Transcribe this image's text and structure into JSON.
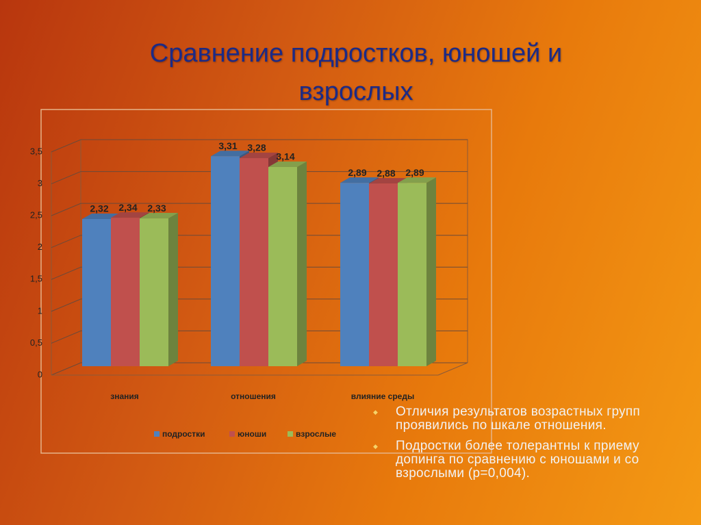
{
  "title": "Сравнение подростков, юношей и взрослых",
  "chart_data": {
    "type": "bar",
    "categories": [
      "знания",
      "отношения",
      "влияние среды"
    ],
    "series": [
      {
        "name": "подростки",
        "color": "#4f81bd",
        "values": [
          2.32,
          3.31,
          2.89
        ],
        "value_labels": [
          "2,32",
          "3,31",
          "2,89"
        ]
      },
      {
        "name": "юноши",
        "color": "#c0504d",
        "values": [
          2.34,
          3.28,
          2.88
        ],
        "value_labels": [
          "2,34",
          "3,28",
          "2,88"
        ]
      },
      {
        "name": "взрослые",
        "color": "#9bbb59",
        "values": [
          2.33,
          3.14,
          2.89
        ],
        "value_labels": [
          "2,33",
          "3,14",
          "2,89"
        ]
      }
    ],
    "ylim": [
      0,
      3.5
    ],
    "yticks": [
      0,
      {
        "value": 0.5,
        "label": "0,5"
      },
      1,
      {
        "value": 1.5,
        "label": "1,5"
      },
      2,
      {
        "value": 2.5,
        "label": "2,5"
      },
      3,
      {
        "value": 3.5,
        "label": "3,5"
      }
    ],
    "grid": true,
    "legend": "bottom"
  },
  "bullets": [
    "Отличия результатов возрастных групп проявились по шкале отношения.",
    "Подростки более толерантны к приему допинга по сравнению с юношами и со взрослыми (р=0,004)."
  ]
}
